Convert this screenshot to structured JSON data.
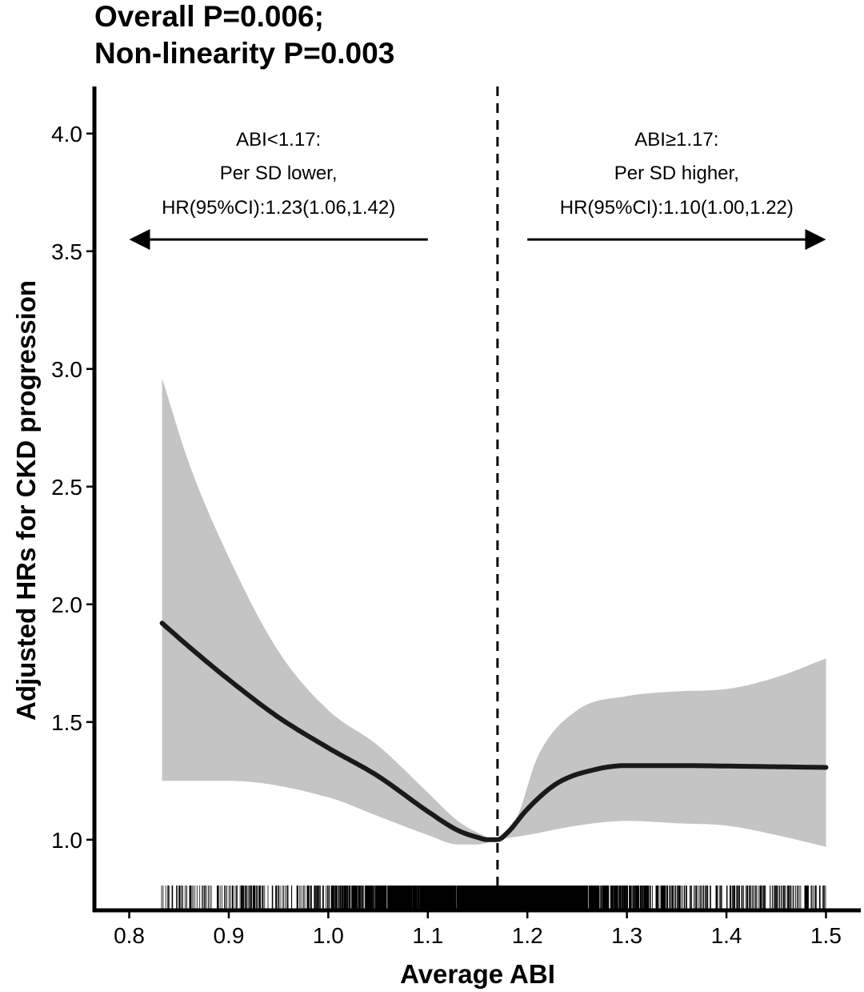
{
  "chart_data": {
    "type": "line",
    "title_lines": [
      "Overall P=0.006;",
      "Non-linearity P=0.003"
    ],
    "xlabel": "Average ABI",
    "ylabel": "Adjusted HRs for CKD progression",
    "xlim": [
      0.765,
      1.535
    ],
    "ylim": [
      0.7,
      4.2
    ],
    "x_ticks": [
      "0.8",
      "0.9",
      "1.0",
      "1.1",
      "1.2",
      "1.3",
      "1.4",
      "1.5"
    ],
    "y_ticks": [
      "1.0",
      "1.5",
      "2.0",
      "2.5",
      "3.0",
      "3.5",
      "4.0"
    ],
    "reference_line_x": 1.17,
    "grid": false,
    "series": [
      {
        "role": "estimate",
        "x": [
          0.833,
          0.86,
          0.9,
          0.95,
          1.0,
          1.05,
          1.1,
          1.13,
          1.15,
          1.16,
          1.17,
          1.18,
          1.2,
          1.23,
          1.27,
          1.3,
          1.35,
          1.4,
          1.45,
          1.5
        ],
        "y": [
          1.92,
          1.82,
          1.68,
          1.52,
          1.39,
          1.27,
          1.12,
          1.04,
          1.01,
          1.0,
          1.0,
          1.03,
          1.13,
          1.24,
          1.3,
          1.315,
          1.315,
          1.313,
          1.31,
          1.307
        ]
      },
      {
        "role": "ci_upper",
        "x": [
          0.833,
          0.86,
          0.9,
          0.95,
          1.0,
          1.05,
          1.1,
          1.13,
          1.15,
          1.17,
          1.19,
          1.21,
          1.25,
          1.3,
          1.35,
          1.4,
          1.45,
          1.5
        ],
        "y": [
          2.96,
          2.6,
          2.2,
          1.8,
          1.55,
          1.4,
          1.2,
          1.08,
          1.03,
          1.0,
          1.1,
          1.35,
          1.55,
          1.61,
          1.63,
          1.64,
          1.69,
          1.77
        ]
      },
      {
        "role": "ci_lower",
        "x": [
          0.833,
          0.9,
          1.0,
          1.05,
          1.1,
          1.13,
          1.15,
          1.17,
          1.2,
          1.25,
          1.3,
          1.35,
          1.4,
          1.45,
          1.5
        ],
        "y": [
          1.25,
          1.25,
          1.18,
          1.1,
          1.02,
          0.98,
          0.98,
          1.0,
          1.02,
          1.06,
          1.08,
          1.07,
          1.06,
          1.02,
          0.97
        ]
      }
    ],
    "rug_x_range": [
      0.832,
      1.5
    ],
    "annotations": [
      {
        "lines": [
          "ABI<1.17:",
          "Per SD lower,",
          "HR(95%CI):1.23(1.06,1.42)"
        ],
        "arrow": {
          "from_x": 1.1,
          "to_x": 0.8,
          "y": 3.55
        }
      },
      {
        "lines": [
          "ABI≥1.17:",
          "Per SD higher,",
          "HR(95%CI):1.10(1.00,1.22)"
        ],
        "arrow": {
          "from_x": 1.2,
          "to_x": 1.5,
          "y": 3.55
        }
      }
    ]
  }
}
